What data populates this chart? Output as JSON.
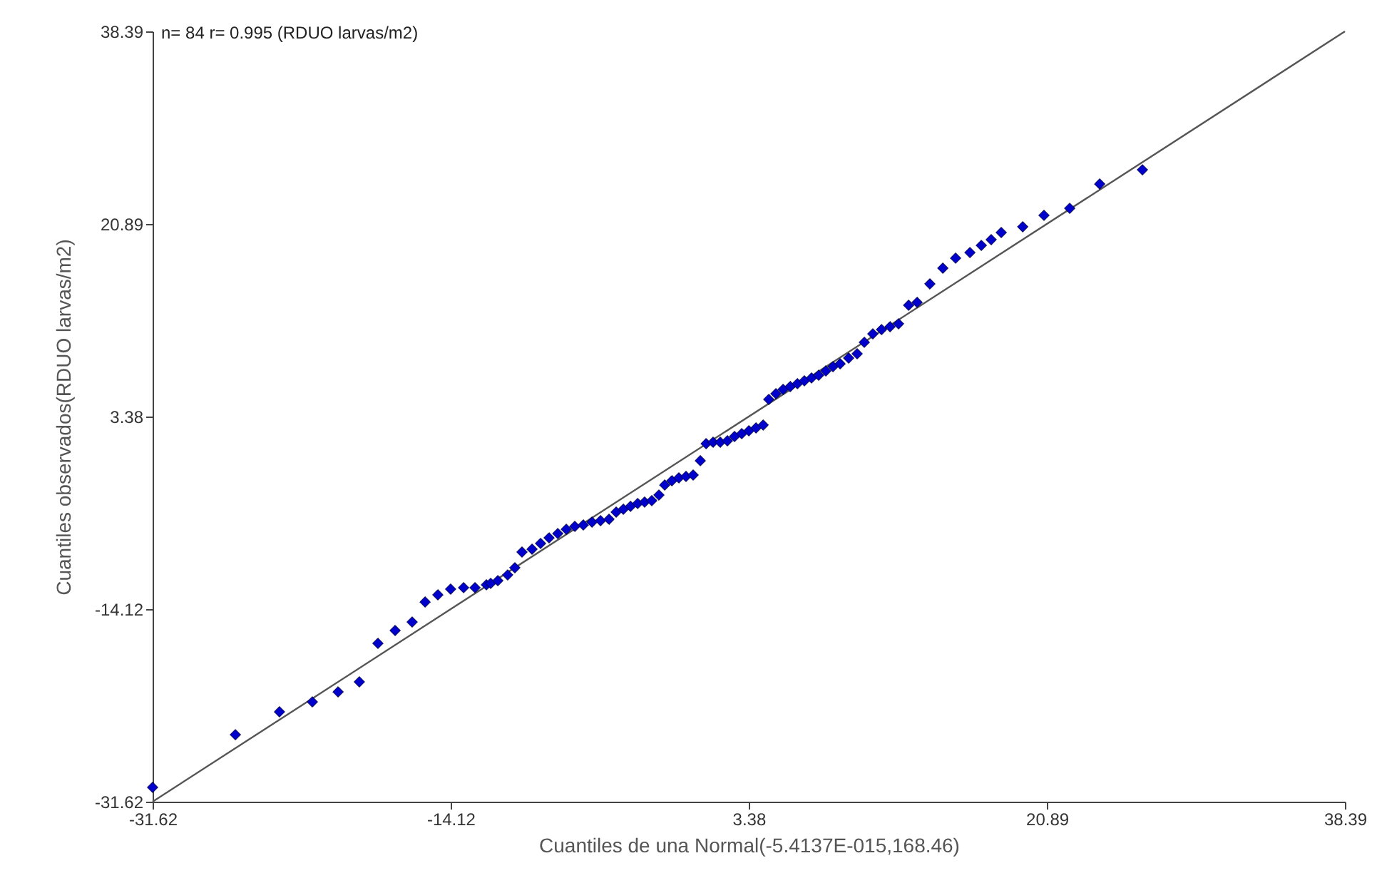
{
  "chart_data": {
    "type": "scatter",
    "annotations": [
      "n= 84 r= 0.995 (RDUO larvas/m2)"
    ],
    "xlabel": "Cuantiles de una Normal(-5.4137E-015,168.46)",
    "ylabel": "Cuantiles observados(RDUO larvas/m2)",
    "xlim": [
      -31.62,
      38.39
    ],
    "ylim": [
      -31.62,
      38.39
    ],
    "xticks": [
      {
        "value": -31.62,
        "label": "-31.62"
      },
      {
        "value": -14.12,
        "label": "-14.12"
      },
      {
        "value": 3.38,
        "label": "3.38"
      },
      {
        "value": 20.89,
        "label": "20.89"
      },
      {
        "value": 38.39,
        "label": "38.39"
      }
    ],
    "yticks": [
      {
        "value": -31.62,
        "label": "-31.62"
      },
      {
        "value": -14.12,
        "label": "-14.12"
      },
      {
        "value": 3.38,
        "label": "3.38"
      },
      {
        "value": 20.89,
        "label": "20.89"
      },
      {
        "value": 38.39,
        "label": "38.39"
      }
    ],
    "grid": false,
    "series": [
      {
        "color": "#0000cc",
        "marker": "diamond",
        "x": [
          -31.62,
          -26.76,
          -24.17,
          -22.24,
          -20.73,
          -19.48,
          -18.39,
          -17.38,
          -16.38,
          -15.62,
          -14.87,
          -14.12,
          -13.36,
          -12.69,
          -12.02,
          -11.77,
          -11.35,
          -10.77,
          -10.35,
          -9.93,
          -9.34,
          -8.84,
          -8.34,
          -7.83,
          -7.33,
          -6.83,
          -6.33,
          -5.82,
          -5.32,
          -4.82,
          -4.4,
          -3.98,
          -3.56,
          -3.14,
          -2.73,
          -2.31,
          -1.89,
          -1.55,
          -1.13,
          -0.72,
          -0.3,
          0.12,
          0.54,
          0.88,
          1.29,
          1.71,
          2.13,
          2.55,
          2.97,
          3.39,
          3.81,
          4.23,
          4.56,
          4.98,
          5.4,
          5.82,
          6.24,
          6.65,
          7.07,
          7.49,
          7.91,
          8.33,
          8.75,
          9.25,
          9.75,
          10.17,
          10.67,
          11.18,
          11.68,
          12.18,
          12.77,
          13.27,
          14.02,
          14.78,
          15.53,
          16.37,
          17.04,
          17.62,
          18.21,
          19.47,
          20.72,
          22.23,
          23.99,
          26.5
        ],
        "values": [
          -30.32,
          -25.53,
          -23.45,
          -22.55,
          -21.64,
          -20.73,
          -17.23,
          -16.06,
          -15.29,
          -13.47,
          -12.82,
          -12.3,
          -12.17,
          -12.17,
          -11.91,
          -11.78,
          -11.53,
          -11.01,
          -10.36,
          -8.93,
          -8.67,
          -8.15,
          -7.64,
          -7.25,
          -6.86,
          -6.6,
          -6.47,
          -6.21,
          -6.08,
          -5.95,
          -5.3,
          -5.04,
          -4.78,
          -4.52,
          -4.39,
          -4.26,
          -3.75,
          -2.84,
          -2.45,
          -2.19,
          -2.06,
          -1.93,
          -0.63,
          0.92,
          1.05,
          1.05,
          1.18,
          1.57,
          1.83,
          2.09,
          2.35,
          2.61,
          4.94,
          5.46,
          5.85,
          6.11,
          6.37,
          6.63,
          6.89,
          7.14,
          7.53,
          7.92,
          8.18,
          8.7,
          9.09,
          10.13,
          10.9,
          11.29,
          11.55,
          11.81,
          13.5,
          13.76,
          15.44,
          16.87,
          17.78,
          18.29,
          18.94,
          19.46,
          20.11,
          20.63,
          21.67,
          22.31,
          24.52,
          25.81
        ]
      },
      {
        "type": "line",
        "marker": "none",
        "color": "#555555",
        "x": [
          -31.62,
          38.39
        ],
        "values": [
          -31.62,
          38.39
        ]
      }
    ]
  }
}
